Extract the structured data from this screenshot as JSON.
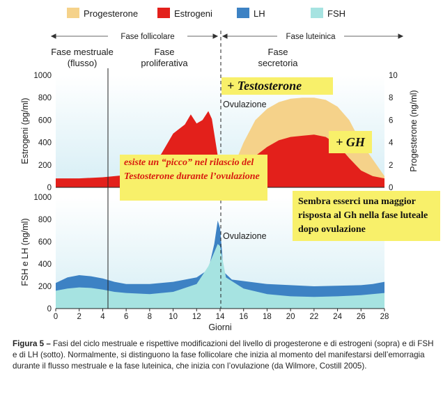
{
  "legend": [
    {
      "name": "Progesterone",
      "color": "#f5d28a"
    },
    {
      "name": "Estrogeni",
      "color": "#e3201b"
    },
    {
      "name": "LH",
      "color": "#3d82c4"
    },
    {
      "name": "FSH",
      "color": "#a6e3e1"
    }
  ],
  "phases": {
    "follicular": "Fase follicolare",
    "luteal": "Fase luteinica",
    "menstrual": [
      "Fase mestruale",
      "(flusso)"
    ],
    "proliferative": [
      "Fase",
      "proliferativa"
    ],
    "secretory": [
      "Fase",
      "secretoria"
    ]
  },
  "ovulation_label": "Ovulazione",
  "callouts": {
    "testosterone": "+ Testosterone",
    "peak": "esiste un “picco” nel rilascio del Testosterone durante l’ovulazione",
    "gh": "+ GH",
    "gh_luteal": "Sembra esserci una maggior risposta al Gh nella fase luteale dopo ovulazione"
  },
  "caption": {
    "label": "Figura 5 –",
    "text": "Fasi del ciclo mestruale e rispettive modificazioni del livello di progesterone e di estrogeni (sopra) e di FSH e di LH (sotto). Normalmente, si distinguono la fase follicolare che inizia al momento del manifestarsi dell’emorragia durante il flusso mestruale e la fase luteinica, che inizia con l’ovulazione (da Wilmore, Costill 2005)."
  },
  "chart_data": [
    {
      "type": "area",
      "xlabel": "Giorni",
      "ylabel_left": "Estrogeni (pg/ml)",
      "ylabel_right": "Progesterone (ng/ml)",
      "ylim_left": [
        0,
        1000
      ],
      "yticks_left": [
        0,
        200,
        400,
        600,
        800,
        1000
      ],
      "ylim_right": [
        0,
        10
      ],
      "yticks_right": [
        0,
        2,
        4,
        6,
        8,
        10
      ],
      "xlim": [
        0,
        28
      ],
      "series": [
        {
          "name": "Progesterone",
          "axis": "right",
          "points": [
            [
              14,
              0.5
            ],
            [
              15,
              1.5
            ],
            [
              16,
              4.0
            ],
            [
              17,
              6.0
            ],
            [
              18,
              7.0
            ],
            [
              19,
              7.6
            ],
            [
              20,
              7.9
            ],
            [
              21,
              8.0
            ],
            [
              22,
              8.0
            ],
            [
              23,
              7.8
            ],
            [
              24,
              7.2
            ],
            [
              25,
              6.0
            ],
            [
              26,
              4.0
            ],
            [
              27,
              2.5
            ],
            [
              28,
              1.0
            ]
          ]
        },
        {
          "name": "Estrogeni",
          "axis": "left",
          "points": [
            [
              0,
              80
            ],
            [
              2,
              80
            ],
            [
              4,
              90
            ],
            [
              6,
              110
            ],
            [
              8,
              180
            ],
            [
              9,
              300
            ],
            [
              10,
              480
            ],
            [
              11,
              560
            ],
            [
              11.5,
              650
            ],
            [
              12,
              570
            ],
            [
              12.5,
              600
            ],
            [
              13,
              680
            ],
            [
              13.3,
              610
            ],
            [
              14,
              150
            ],
            [
              15,
              90
            ],
            [
              16,
              180
            ],
            [
              17,
              280
            ],
            [
              18,
              360
            ],
            [
              19,
              420
            ],
            [
              20,
              450
            ],
            [
              21,
              460
            ],
            [
              22,
              470
            ],
            [
              23,
              450
            ],
            [
              24,
              380
            ],
            [
              25,
              260
            ],
            [
              26,
              150
            ],
            [
              27,
              100
            ],
            [
              28,
              80
            ]
          ]
        }
      ]
    },
    {
      "type": "area",
      "xlabel": "Giorni",
      "ylabel": "FSH e LH (ng/ml)",
      "ylim": [
        0,
        1000
      ],
      "yticks": [
        0,
        200,
        400,
        600,
        800,
        1000
      ],
      "xlim": [
        0,
        28
      ],
      "xticks": [
        0,
        2,
        4,
        6,
        8,
        10,
        12,
        14,
        16,
        18,
        20,
        22,
        24,
        26,
        28
      ],
      "series": [
        {
          "name": "LH",
          "points": [
            [
              0,
              230
            ],
            [
              1,
              280
            ],
            [
              2,
              300
            ],
            [
              3,
              290
            ],
            [
              4,
              270
            ],
            [
              5,
              240
            ],
            [
              6,
              220
            ],
            [
              8,
              220
            ],
            [
              10,
              240
            ],
            [
              12,
              280
            ],
            [
              13,
              350
            ],
            [
              13.5,
              580
            ],
            [
              13.8,
              790
            ],
            [
              14,
              720
            ],
            [
              14.3,
              330
            ],
            [
              15,
              260
            ],
            [
              18,
              220
            ],
            [
              22,
              200
            ],
            [
              26,
              210
            ],
            [
              27,
              220
            ],
            [
              28,
              240
            ]
          ]
        },
        {
          "name": "FSH",
          "points": [
            [
              0,
              160
            ],
            [
              1,
              180
            ],
            [
              2,
              190
            ],
            [
              3,
              185
            ],
            [
              4,
              170
            ],
            [
              5,
              150
            ],
            [
              6,
              140
            ],
            [
              8,
              130
            ],
            [
              10,
              150
            ],
            [
              12,
              220
            ],
            [
              13,
              380
            ],
            [
              13.8,
              580
            ],
            [
              14,
              560
            ],
            [
              14.5,
              280
            ],
            [
              16,
              180
            ],
            [
              18,
              130
            ],
            [
              20,
              110
            ],
            [
              22,
              105
            ],
            [
              24,
              110
            ],
            [
              26,
              120
            ],
            [
              28,
              140
            ]
          ]
        }
      ]
    }
  ]
}
